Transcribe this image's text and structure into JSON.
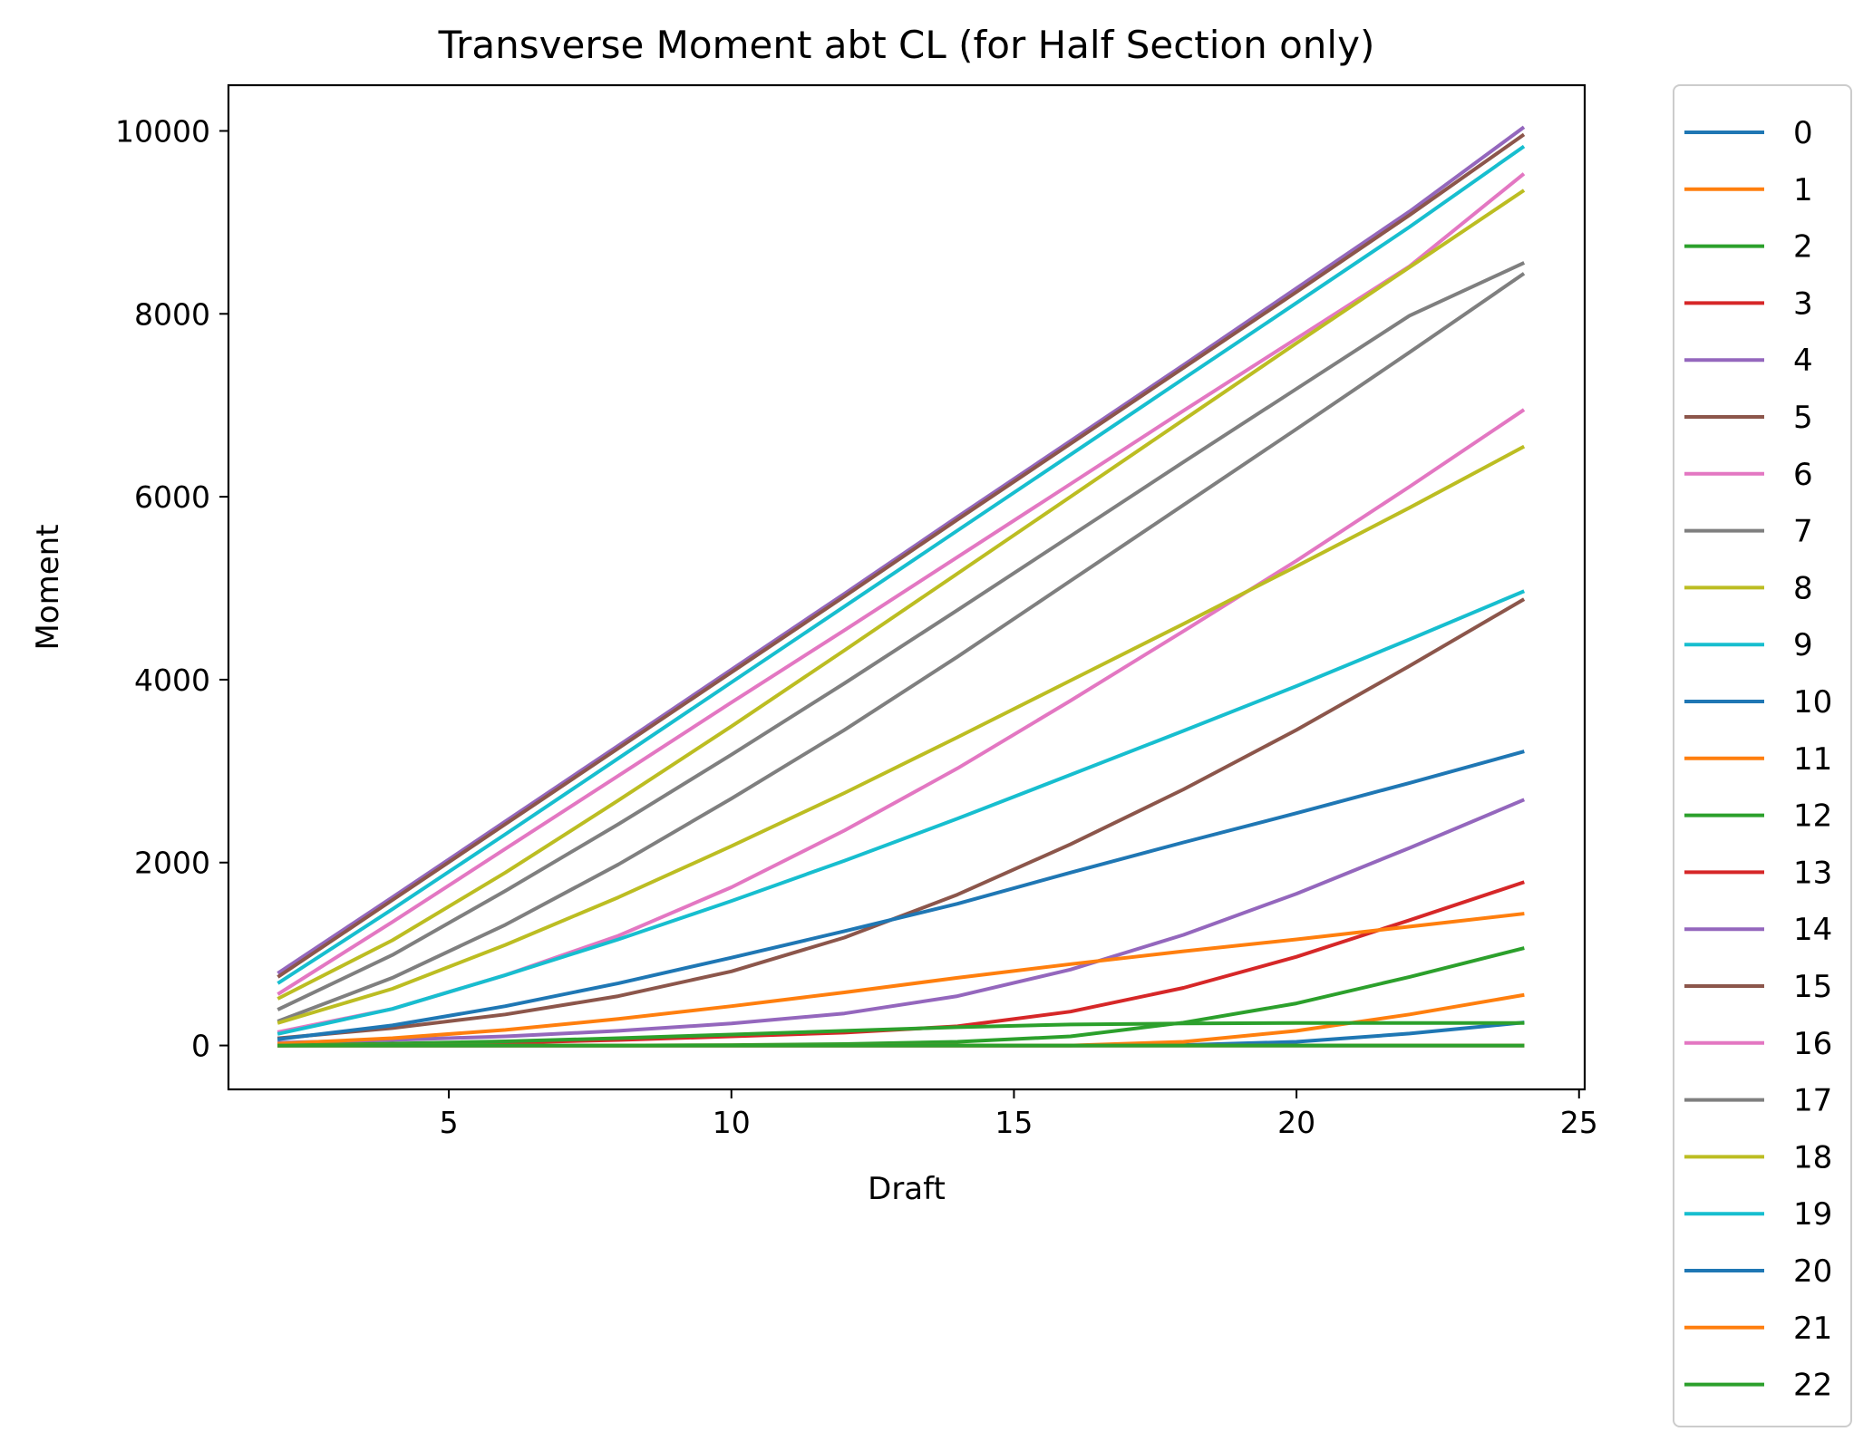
{
  "chart_data": {
    "type": "line",
    "title": "Transverse Moment abt CL (for Half Section only)",
    "xlabel": "Draft",
    "ylabel": "Moment",
    "xlim": [
      1.1,
      25.1
    ],
    "ylim": [
      -480,
      10500
    ],
    "xticks": [
      5,
      10,
      15,
      20,
      25
    ],
    "yticks": [
      0,
      2000,
      4000,
      6000,
      8000,
      10000
    ],
    "grid": false,
    "legend_position": "outside-right",
    "x": [
      2,
      4,
      6,
      8,
      10,
      12,
      14,
      16,
      18,
      20,
      22,
      24
    ],
    "series": [
      {
        "name": "0",
        "color": "#1f77b4",
        "values": [
          0,
          0,
          0,
          0,
          0,
          0,
          0,
          0,
          5,
          40,
          130,
          250
        ]
      },
      {
        "name": "1",
        "color": "#ff7f0e",
        "values": [
          0,
          0,
          0,
          0,
          0,
          0,
          0,
          0,
          40,
          160,
          340,
          550
        ]
      },
      {
        "name": "2",
        "color": "#2ca02c",
        "values": [
          0,
          0,
          0,
          0,
          5,
          15,
          40,
          100,
          250,
          460,
          750,
          1060
        ]
      },
      {
        "name": "3",
        "color": "#d62728",
        "values": [
          0,
          10,
          30,
          60,
          100,
          140,
          210,
          370,
          630,
          970,
          1370,
          1780
        ]
      },
      {
        "name": "4",
        "color": "#9467bd",
        "values": [
          30,
          60,
          100,
          160,
          240,
          350,
          540,
          830,
          1210,
          1660,
          2160,
          2680
        ]
      },
      {
        "name": "5",
        "color": "#8c564b",
        "values": [
          80,
          190,
          340,
          540,
          810,
          1180,
          1650,
          2200,
          2800,
          3450,
          4150,
          4870
        ]
      },
      {
        "name": "6",
        "color": "#e377c2",
        "values": [
          150,
          400,
          770,
          1200,
          1730,
          2350,
          3030,
          3770,
          4530,
          5300,
          6110,
          6940
        ]
      },
      {
        "name": "7",
        "color": "#7f7f7f",
        "values": [
          270,
          740,
          1320,
          1980,
          2700,
          3450,
          4250,
          5080,
          5910,
          6740,
          7580,
          8430
        ]
      },
      {
        "name": "8",
        "color": "#bcbd22",
        "values": [
          250,
          620,
          1100,
          1620,
          2180,
          2760,
          3370,
          3990,
          4610,
          5240,
          5880,
          6540
        ]
      },
      {
        "name": "9",
        "color": "#17becf",
        "values": [
          130,
          400,
          770,
          1160,
          1580,
          2020,
          2480,
          2960,
          3440,
          3930,
          4440,
          4960
        ]
      },
      {
        "name": "10",
        "color": "#1f77b4",
        "values": [
          70,
          220,
          430,
          680,
          960,
          1250,
          1550,
          1890,
          2220,
          2540,
          2870,
          3210
        ]
      },
      {
        "name": "11",
        "color": "#ff7f0e",
        "values": [
          20,
          80,
          170,
          290,
          430,
          580,
          740,
          890,
          1030,
          1160,
          1300,
          1440
        ]
      },
      {
        "name": "12",
        "color": "#2ca02c",
        "values": [
          0,
          20,
          45,
          80,
          120,
          160,
          200,
          230,
          240,
          245,
          245,
          245
        ]
      },
      {
        "name": "13",
        "color": "#d62728",
        "values": [
          0,
          0,
          0,
          0,
          0,
          0,
          0,
          0,
          0,
          0,
          0,
          0
        ]
      },
      {
        "name": "14",
        "color": "#9467bd",
        "values": [
          800,
          1620,
          2450,
          3280,
          4110,
          4940,
          5780,
          6610,
          7440,
          8280,
          9120,
          10030
        ]
      },
      {
        "name": "15",
        "color": "#8c564b",
        "values": [
          760,
          1590,
          2420,
          3250,
          4080,
          4910,
          5750,
          6580,
          7410,
          8240,
          9080,
          9950
        ]
      },
      {
        "name": "16",
        "color": "#e377c2",
        "values": [
          570,
          1350,
          2150,
          2950,
          3750,
          4540,
          5340,
          6140,
          6940,
          7730,
          8520,
          9520
        ]
      },
      {
        "name": "17",
        "color": "#7f7f7f",
        "values": [
          400,
          990,
          1690,
          2420,
          3180,
          3960,
          4760,
          5570,
          6380,
          7180,
          7980,
          8550
        ]
      },
      {
        "name": "18",
        "color": "#bcbd22",
        "values": [
          520,
          1150,
          1890,
          2680,
          3490,
          4320,
          5160,
          6000,
          6840,
          7680,
          8510,
          9340
        ]
      },
      {
        "name": "19",
        "color": "#17becf",
        "values": [
          690,
          1490,
          2310,
          3140,
          3970,
          4800,
          5630,
          6460,
          7290,
          8120,
          8950,
          9820
        ]
      },
      {
        "name": "20",
        "color": "#1f77b4",
        "values": [
          0,
          0,
          0,
          0,
          0,
          0,
          0,
          0,
          0,
          0,
          0,
          0
        ]
      },
      {
        "name": "21",
        "color": "#ff7f0e",
        "values": [
          0,
          0,
          0,
          0,
          0,
          0,
          0,
          0,
          0,
          0,
          0,
          0
        ]
      },
      {
        "name": "22",
        "color": "#2ca02c",
        "values": [
          0,
          0,
          0,
          0,
          0,
          0,
          0,
          0,
          0,
          0,
          0,
          0
        ]
      }
    ]
  }
}
